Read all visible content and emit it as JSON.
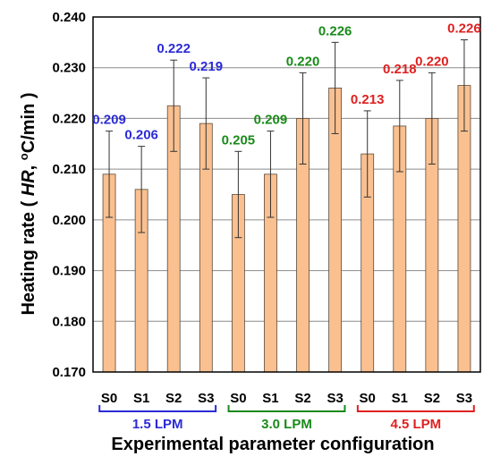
{
  "chart_data": {
    "type": "bar",
    "xlabel": "Experimental parameter configuration",
    "ylabel_prefix": "Heating rate ( ",
    "ylabel_italic": "HR",
    "ylabel_sep": ", ",
    "ylabel_unit_super": "o",
    "ylabel_unit_rest": "C/min )",
    "ylim": [
      0.17,
      0.24
    ],
    "yticks": [
      0.17,
      0.18,
      0.19,
      0.2,
      0.21,
      0.22,
      0.23,
      0.24
    ],
    "ytick_labels": [
      "0.170",
      "0.180",
      "0.190",
      "0.200",
      "0.210",
      "0.220",
      "0.230",
      "0.240"
    ],
    "grid": true,
    "bar_color": "#fac090",
    "bar_edge": "#5a4a3a",
    "categories": [
      "S0",
      "S1",
      "S2",
      "S3",
      "S0",
      "S1",
      "S2",
      "S3",
      "S0",
      "S1",
      "S2",
      "S3"
    ],
    "values": [
      0.209,
      0.206,
      0.2225,
      0.219,
      0.205,
      0.209,
      0.22,
      0.226,
      0.213,
      0.2185,
      0.22,
      0.2265
    ],
    "errors": [
      0.0085,
      0.0085,
      0.009,
      0.009,
      0.0085,
      0.0085,
      0.009,
      0.009,
      0.0085,
      0.009,
      0.009,
      0.009
    ],
    "value_labels": [
      "0.209",
      "0.206",
      "0.222",
      "0.219",
      "0.205",
      "0.209",
      "0.220",
      "0.226",
      "0.213",
      "0.218",
      "0.220",
      "0.226"
    ],
    "groups": [
      {
        "label": "1.5 LPM",
        "color": "#2b2bd6",
        "start": 0,
        "end": 3
      },
      {
        "label": "3.0 LPM",
        "color": "#1a8a1a",
        "start": 4,
        "end": 7
      },
      {
        "label": "4.5 LPM",
        "color": "#e02020",
        "start": 8,
        "end": 11
      }
    ]
  }
}
